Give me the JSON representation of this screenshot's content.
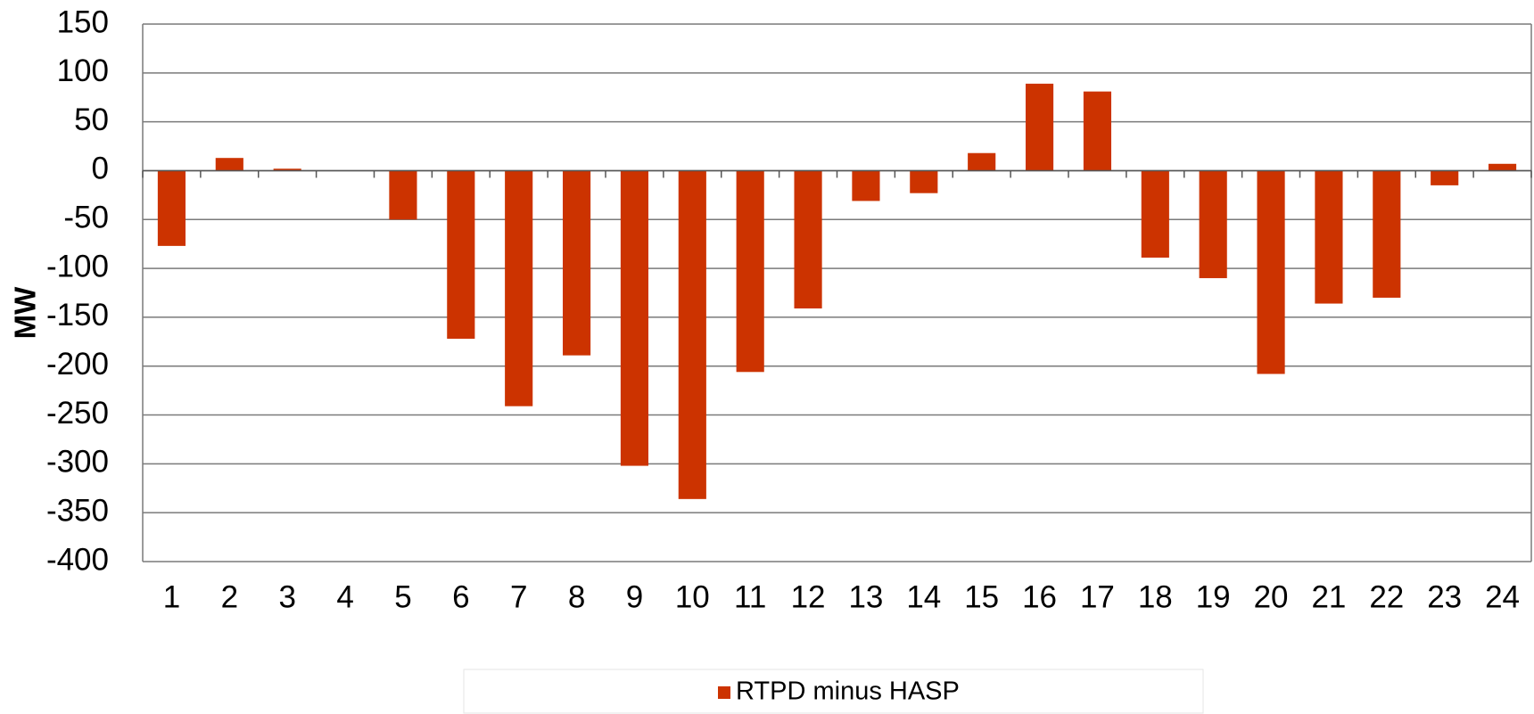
{
  "chart_data": {
    "type": "bar",
    "y_label": "MW",
    "categories": [
      "1",
      "2",
      "3",
      "4",
      "5",
      "6",
      "7",
      "8",
      "9",
      "10",
      "11",
      "12",
      "13",
      "14",
      "15",
      "16",
      "17",
      "18",
      "19",
      "20",
      "21",
      "22",
      "23",
      "24"
    ],
    "series": [
      {
        "name": "RTPD minus HASP",
        "color": "#cc3300",
        "values": [
          -77,
          13,
          2,
          0,
          -50,
          -172,
          -241,
          -189,
          -302,
          -336,
          -206,
          -141,
          -31,
          -23,
          18,
          89,
          81,
          -89,
          -110,
          -208,
          -136,
          -130,
          -15,
          7
        ]
      }
    ],
    "ylim": [
      -400,
      150
    ],
    "yticks": [
      -400,
      -350,
      -300,
      -250,
      -200,
      -150,
      -100,
      -50,
      0,
      50,
      100,
      150
    ],
    "grid": true,
    "legend": "bottom"
  }
}
